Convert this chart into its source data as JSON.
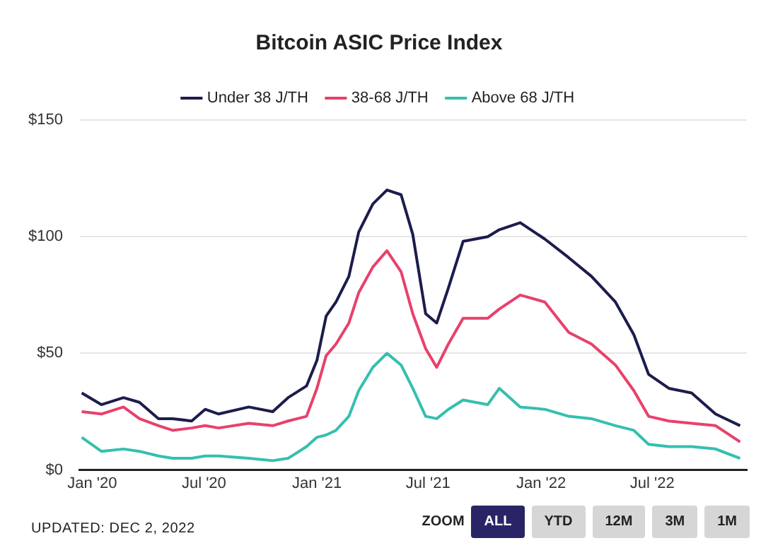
{
  "chart_data": {
    "type": "line",
    "title": "Bitcoin ASIC Price Index",
    "x": [
      "2019-12-15",
      "2020-01-16",
      "2020-02-21",
      "2020-03-18",
      "2020-04-18",
      "2020-05-11",
      "2020-06-11",
      "2020-07-03",
      "2020-07-25",
      "2020-09-12",
      "2020-10-21",
      "2020-11-15",
      "2020-12-15",
      "2021-01-01",
      "2021-01-16",
      "2021-02-01",
      "2021-02-22",
      "2021-03-10",
      "2021-04-02",
      "2021-04-25",
      "2021-05-18",
      "2021-06-06",
      "2021-06-27",
      "2021-07-15",
      "2021-08-03",
      "2021-08-27",
      "2021-10-06",
      "2021-10-25",
      "2021-11-28",
      "2022-01-07",
      "2022-02-15",
      "2022-03-24",
      "2022-05-02",
      "2022-06-01",
      "2022-06-25",
      "2022-07-28",
      "2022-09-03",
      "2022-10-12",
      "2022-11-21"
    ],
    "series": [
      {
        "name": "Under 38 J/TH",
        "color": "#1c1c4c",
        "values": [
          33,
          28,
          31,
          29,
          22,
          22,
          21,
          26,
          24,
          27,
          25,
          31,
          36,
          47,
          66,
          72,
          83,
          102,
          114,
          120,
          118,
          101,
          67,
          63,
          78,
          98,
          100,
          103,
          106,
          99,
          91,
          83,
          72,
          58,
          41,
          35,
          33,
          24,
          19
        ]
      },
      {
        "name": "38-68 J/TH",
        "color": "#e8416b",
        "values": [
          25,
          24,
          27,
          22,
          19,
          17,
          18,
          19,
          18,
          20,
          19,
          21,
          23,
          35,
          49,
          54,
          63,
          76,
          87,
          94,
          85,
          67,
          52,
          44,
          54,
          65,
          65,
          69,
          75,
          72,
          59,
          54,
          45,
          34,
          23,
          21,
          20,
          19,
          12
        ]
      },
      {
        "name": "Above 68 J/TH",
        "color": "#35bfb0",
        "values": [
          14,
          8,
          9,
          8,
          6,
          5,
          5,
          6,
          6,
          5,
          4,
          5,
          10,
          14,
          15,
          17,
          23,
          34,
          44,
          50,
          45,
          35,
          23,
          22,
          26,
          30,
          28,
          35,
          27,
          26,
          23,
          22,
          19,
          17,
          11,
          10,
          10,
          9,
          5
        ]
      }
    ],
    "xlim": [
      "2019-12-12",
      "2022-12-02"
    ],
    "xticks": [
      {
        "value": "2020-01-01",
        "label": "Jan '20"
      },
      {
        "value": "2020-07-01",
        "label": "Jul '20"
      },
      {
        "value": "2021-01-01",
        "label": "Jan '21"
      },
      {
        "value": "2021-07-01",
        "label": "Jul '21"
      },
      {
        "value": "2022-01-01",
        "label": "Jan '22"
      },
      {
        "value": "2022-07-01",
        "label": "Jul '22"
      }
    ],
    "ylim": [
      0,
      150
    ],
    "yticks": [
      {
        "value": 0,
        "label": "$0"
      },
      {
        "value": 50,
        "label": "$50"
      },
      {
        "value": 100,
        "label": "$100"
      },
      {
        "value": 150,
        "label": "$150"
      }
    ],
    "grid": "y",
    "legend": "top",
    "annotations": [
      "UPDATED: DEC 2, 2022",
      "ZOOM",
      "ALL",
      "YTD",
      "12M",
      "3M",
      "1M"
    ]
  }
}
